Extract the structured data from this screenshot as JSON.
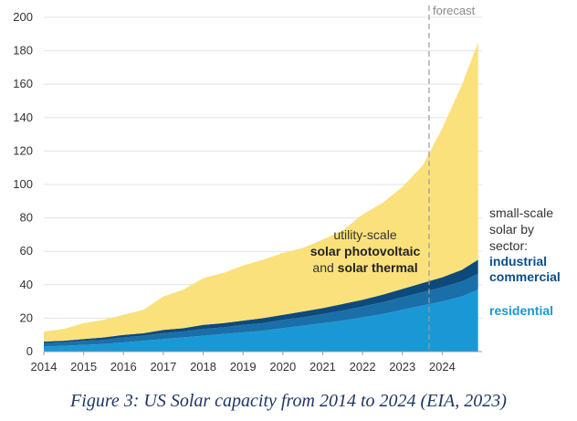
{
  "chart_data": {
    "type": "area",
    "stacked": true,
    "x_axis": {
      "ticks": [
        "2014",
        "2015",
        "2016",
        "2017",
        "2018",
        "2019",
        "2020",
        "2021",
        "2022",
        "2023",
        "2024"
      ],
      "range": [
        2014,
        2025
      ]
    },
    "y_axis": {
      "ticks": [
        0,
        20,
        40,
        60,
        80,
        100,
        120,
        140,
        160,
        180,
        200
      ],
      "range": [
        0,
        200
      ]
    },
    "grid": "horizontal",
    "forecast": {
      "label": "forecast",
      "x": 2023.67
    },
    "x": [
      2014,
      2014.5,
      2015,
      2015.5,
      2016,
      2016.5,
      2017,
      2017.5,
      2018,
      2018.5,
      2019,
      2019.5,
      2020,
      2020.5,
      2021,
      2021.5,
      2022,
      2022.5,
      2023,
      2023.5,
      2024,
      2024.5,
      2024.9
    ],
    "series": [
      {
        "key": "residential",
        "color": "#1a98d5",
        "values": [
          3,
          3.5,
          4,
          4.5,
          5.5,
          6.5,
          7.5,
          8.5,
          9.5,
          10.5,
          11.5,
          12.5,
          14,
          15.5,
          17,
          18.5,
          20.5,
          22.5,
          25,
          27.5,
          30,
          33,
          37
        ]
      },
      {
        "key": "commercial",
        "color": "#1b6fa8",
        "values": [
          2,
          2,
          2.5,
          2.5,
          3,
          3,
          3.5,
          3.5,
          4,
          4,
          4.5,
          4.5,
          5,
          5,
          5.5,
          6,
          6.5,
          7,
          7.5,
          8,
          8.5,
          9,
          9.5
        ]
      },
      {
        "key": "industrial",
        "color": "#0d4a7c",
        "values": [
          1,
          1,
          1,
          1.5,
          1.5,
          1.5,
          2,
          2,
          2.5,
          2.5,
          2.5,
          3,
          3,
          3.5,
          3.5,
          4,
          4,
          4.5,
          5,
          5.5,
          6,
          7,
          8.5
        ]
      },
      {
        "key": "utility",
        "color": "#fae17c",
        "values": [
          6,
          7,
          9.5,
          10.5,
          12,
          14,
          20,
          23,
          28,
          30,
          33,
          35,
          37,
          38,
          41,
          44,
          51,
          55,
          61,
          70,
          89,
          111,
          130
        ]
      }
    ],
    "annotations": {
      "utility": [
        "utility-scale",
        "solar photovoltaic",
        "and ",
        "solar thermal"
      ],
      "small_scale": [
        "small-scale",
        "solar by",
        "sector:"
      ],
      "industrial": "industrial",
      "commercial": "commercial",
      "residential": "residential"
    }
  },
  "caption": "Figure 3: US Solar capacity from 2014 to 2024 (EIA, 2023)"
}
